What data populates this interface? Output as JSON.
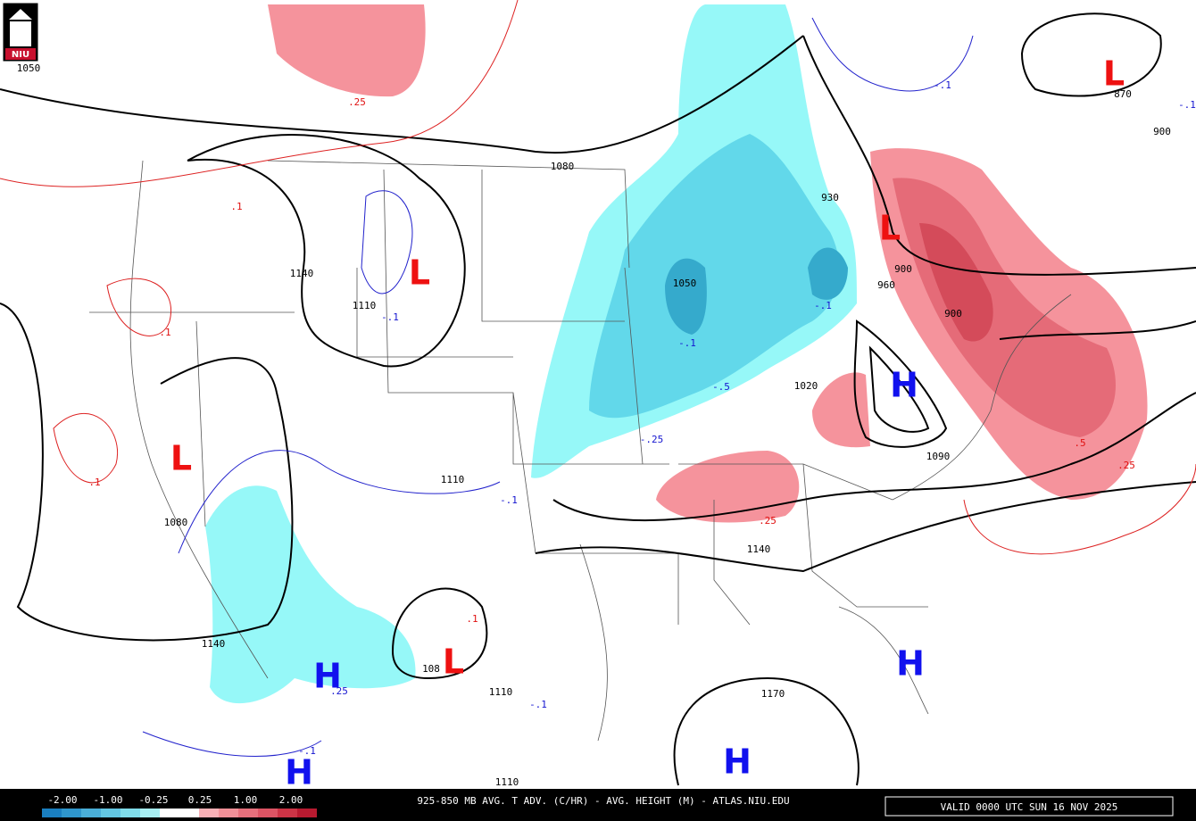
{
  "logo": "NIU",
  "map_labels": [
    "1050",
    ".25",
    "1080",
    "930",
    ".1",
    "L",
    "L",
    "L",
    "L",
    "L",
    "H",
    "H",
    "H",
    "H",
    "H",
    "1140",
    "1110",
    "-.1",
    "1050",
    "-.1",
    "960",
    "900",
    "900",
    ".1",
    "-.1",
    "-.5",
    "1020",
    "-.25",
    ".5",
    ".25",
    ".1",
    "1110",
    "-.1",
    "1080",
    ".25",
    "1140",
    "1140",
    ".1",
    "108",
    "1110",
    "-.1",
    "1170",
    "1110",
    "870",
    "900",
    "-.1",
    "-.1",
    "1090",
    "-.1",
    ".25"
  ],
  "colorbar": {
    "labels": [
      "-2.00",
      "-1.00",
      "-0.25",
      "0.25",
      "1.00",
      "2.00"
    ]
  },
  "footer": {
    "title": "925-850 MB AVG. T ADV. (C/HR) - AVG. HEIGHT (M) - ATLAS.NIU.EDU",
    "valid": "VALID 0000 UTC SUN 16 NOV 2025"
  }
}
